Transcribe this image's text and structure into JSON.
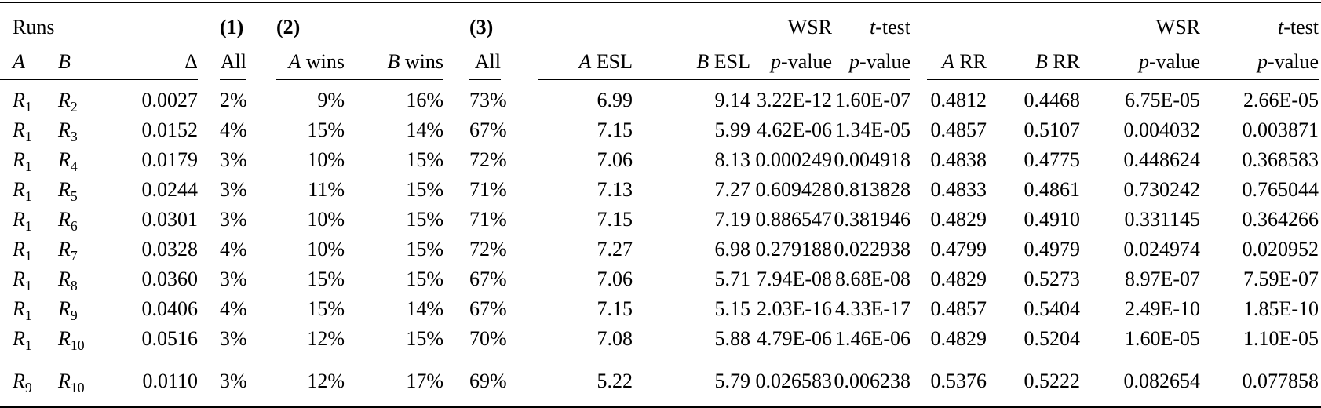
{
  "colors": {
    "text": "#000000",
    "background": "#ffffff",
    "rule": "#000000"
  },
  "table": {
    "group_header_cells": [
      {
        "id": "runs",
        "text": "Runs",
        "cols": [
          "a",
          "b",
          "delta"
        ],
        "align": "left",
        "bold": false
      },
      {
        "id": "g1",
        "text": "(1)",
        "cols": [
          "all1"
        ],
        "align": "left",
        "bold": true
      },
      {
        "id": "g2",
        "text": "(2)",
        "cols": [
          "awins",
          "bwins"
        ],
        "align": "left",
        "bold": true
      },
      {
        "id": "g3",
        "text": "(3)",
        "cols": [
          "all3"
        ],
        "align": "left",
        "bold": true
      },
      {
        "id": "esl-wsr",
        "text": "WSR",
        "cols": [
          "wsr1"
        ],
        "align": "right",
        "bold": false
      },
      {
        "id": "esl-ttest",
        "text": "*t*-test",
        "cols": [
          "t1"
        ],
        "align": "right",
        "bold": false
      },
      {
        "id": "rr-wsr",
        "text": "WSR",
        "cols": [
          "wsr2"
        ],
        "align": "right",
        "bold": false
      },
      {
        "id": "rr-ttest",
        "text": "*t*-test",
        "cols": [
          "t2"
        ],
        "align": "right",
        "bold": false
      }
    ],
    "column_headers": {
      "a": "*A*",
      "b": "*B*",
      "delta": "Δ",
      "all1": "All",
      "awins": "*A* wins",
      "bwins": "*B* wins",
      "all3": "All",
      "aesl": "*A* ESL",
      "besl": "*B* ESL",
      "wsr1": "*p*-value",
      "t1": "*p*-value",
      "arr": "*A* RR",
      "brr": "*B* RR",
      "wsr2": "*p*-value",
      "t2": "*p*-value"
    },
    "rows": [
      [
        "*R*_{1}",
        "*R*_{2}",
        "0.0027",
        "2%",
        "9%",
        "16%",
        "73%",
        "6.99",
        "9.14",
        "3.22E-12",
        "1.60E-07",
        "0.4812",
        "0.4468",
        "6.75E-05",
        "2.66E-05"
      ],
      [
        "*R*_{1}",
        "*R*_{3}",
        "0.0152",
        "4%",
        "15%",
        "14%",
        "67%",
        "7.15",
        "5.99",
        "4.62E-06",
        "1.34E-05",
        "0.4857",
        "0.5107",
        "0.004032",
        "0.003871"
      ],
      [
        "*R*_{1}",
        "*R*_{4}",
        "0.0179",
        "3%",
        "10%",
        "15%",
        "72%",
        "7.06",
        "8.13",
        "0.000249",
        "0.004918",
        "0.4838",
        "0.4775",
        "0.448624",
        "0.368583"
      ],
      [
        "*R*_{1}",
        "*R*_{5}",
        "0.0244",
        "3%",
        "11%",
        "15%",
        "71%",
        "7.13",
        "7.27",
        "0.609428",
        "0.813828",
        "0.4833",
        "0.4861",
        "0.730242",
        "0.765044"
      ],
      [
        "*R*_{1}",
        "*R*_{6}",
        "0.0301",
        "3%",
        "10%",
        "15%",
        "71%",
        "7.15",
        "7.19",
        "0.886547",
        "0.381946",
        "0.4829",
        "0.4910",
        "0.331145",
        "0.364266"
      ],
      [
        "*R*_{1}",
        "*R*_{7}",
        "0.0328",
        "4%",
        "10%",
        "15%",
        "72%",
        "7.27",
        "6.98",
        "0.279188",
        "0.022938",
        "0.4799",
        "0.4979",
        "0.024974",
        "0.020952"
      ],
      [
        "*R*_{1}",
        "*R*_{8}",
        "0.0360",
        "3%",
        "15%",
        "15%",
        "67%",
        "7.06",
        "5.71",
        "7.94E-08",
        "8.68E-08",
        "0.4829",
        "0.5273",
        "8.97E-07",
        "7.59E-07"
      ],
      [
        "*R*_{1}",
        "*R*_{9}",
        "0.0406",
        "4%",
        "15%",
        "14%",
        "67%",
        "7.15",
        "5.15",
        "2.03E-16",
        "4.33E-17",
        "0.4857",
        "0.5404",
        "2.49E-10",
        "1.85E-10"
      ],
      [
        "*R*_{1}",
        "*R*_{10}",
        "0.0516",
        "3%",
        "12%",
        "15%",
        "70%",
        "7.08",
        "5.88",
        "4.79E-06",
        "1.46E-06",
        "0.4829",
        "0.5204",
        "1.60E-05",
        "1.10E-05"
      ]
    ],
    "footer_rows": [
      [
        "*R*_{9}",
        "*R*_{10}",
        "0.0110",
        "3%",
        "12%",
        "17%",
        "69%",
        "5.22",
        "5.79",
        "0.026583",
        "0.006238",
        "0.5376",
        "0.5222",
        "0.082654",
        "0.077858"
      ]
    ]
  }
}
